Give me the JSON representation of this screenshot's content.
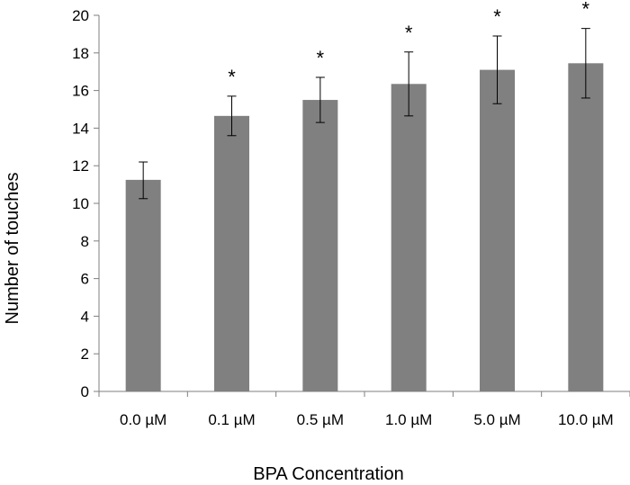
{
  "chart_data": {
    "type": "bar",
    "title": "",
    "xlabel": "BPA Concentration",
    "ylabel": "Number of touches",
    "categories": [
      "0.0 µM",
      "0.1 µM",
      "0.5 µM",
      "1.0 µM",
      "5.0 µM",
      "10.0 µM"
    ],
    "values": [
      11.25,
      14.65,
      15.5,
      16.35,
      17.1,
      17.45
    ],
    "error_low": [
      1.0,
      1.05,
      1.2,
      1.7,
      1.8,
      1.85
    ],
    "error_high": [
      0.95,
      1.05,
      1.2,
      1.7,
      1.8,
      1.85
    ],
    "annotations": [
      "",
      "*",
      "*",
      "*",
      "*",
      "*"
    ],
    "ylim": [
      0,
      20
    ],
    "yticks": [
      0,
      2,
      4,
      6,
      8,
      10,
      12,
      14,
      16,
      18,
      20
    ],
    "bar_color": "#808080",
    "grid": false,
    "legend": "none"
  }
}
